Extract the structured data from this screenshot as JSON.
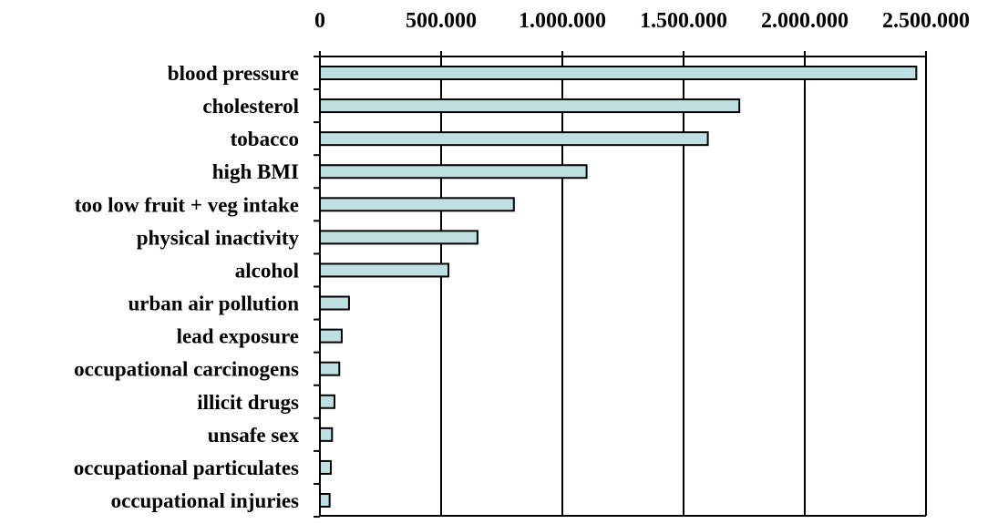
{
  "chart_data": {
    "type": "bar",
    "orientation": "horizontal",
    "title": "",
    "xlabel": "",
    "ylabel": "",
    "categories": [
      "blood pressure",
      "cholesterol",
      "tobacco",
      "high BMI",
      "too low fruit + veg intake",
      "physical inactivity",
      "alcohol",
      "urban air pollution",
      "lead exposure",
      "occupational carcinogens",
      "illicit drugs",
      "unsafe sex",
      "occupational particulates",
      "occupational injuries"
    ],
    "values": [
      2460000,
      1730000,
      1600000,
      1100000,
      800000,
      650000,
      530000,
      120000,
      90000,
      80000,
      60000,
      50000,
      45000,
      40000
    ],
    "xlim": [
      0,
      2500000
    ],
    "x_ticks": [
      0,
      500000,
      1000000,
      1500000,
      2000000,
      2500000
    ],
    "x_tick_labels": [
      "0",
      "500.000",
      "1.000.000",
      "1.500.000",
      "2.000.000",
      "2.500.000"
    ],
    "x_axis_position": "top",
    "grid": "vertical",
    "legend": "none",
    "bar_color": "#bfe0e0",
    "bar_edge_color": "#000000"
  }
}
